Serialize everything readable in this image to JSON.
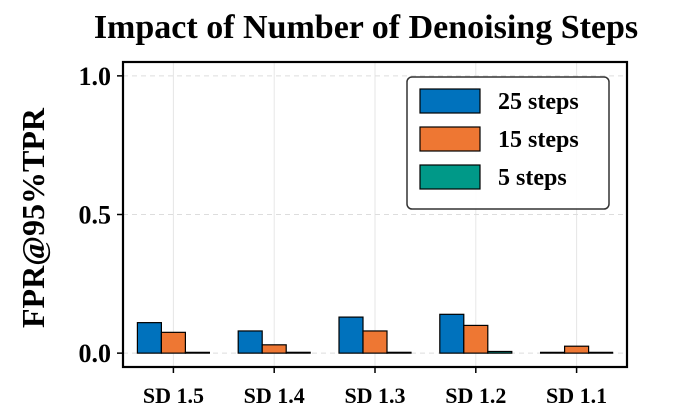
{
  "chart_data": {
    "type": "bar",
    "title": "Impact of Number of Denoising Steps",
    "xlabel": "",
    "ylabel": "FPR@95%TPR",
    "categories": [
      "SD 1.5",
      "SD 1.4",
      "SD 1.3",
      "SD 1.2",
      "SD 1.1"
    ],
    "series": [
      {
        "name": "25 steps",
        "color": "#0072BD",
        "values": [
          0.11,
          0.08,
          0.13,
          0.14,
          0.0
        ]
      },
      {
        "name": "15 steps",
        "color": "#EE7733",
        "values": [
          0.075,
          0.03,
          0.08,
          0.1,
          0.025
        ]
      },
      {
        "name": "5 steps",
        "color": "#009988",
        "values": [
          0.0,
          0.003,
          0.003,
          0.006,
          0.0
        ]
      }
    ],
    "ylim": [
      -0.05,
      1.05
    ],
    "yticks": [
      0.0,
      0.5,
      1.0
    ],
    "ytick_labels": [
      "0.0",
      "0.5",
      "1.0"
    ],
    "grid": true,
    "legend": "top-right"
  }
}
